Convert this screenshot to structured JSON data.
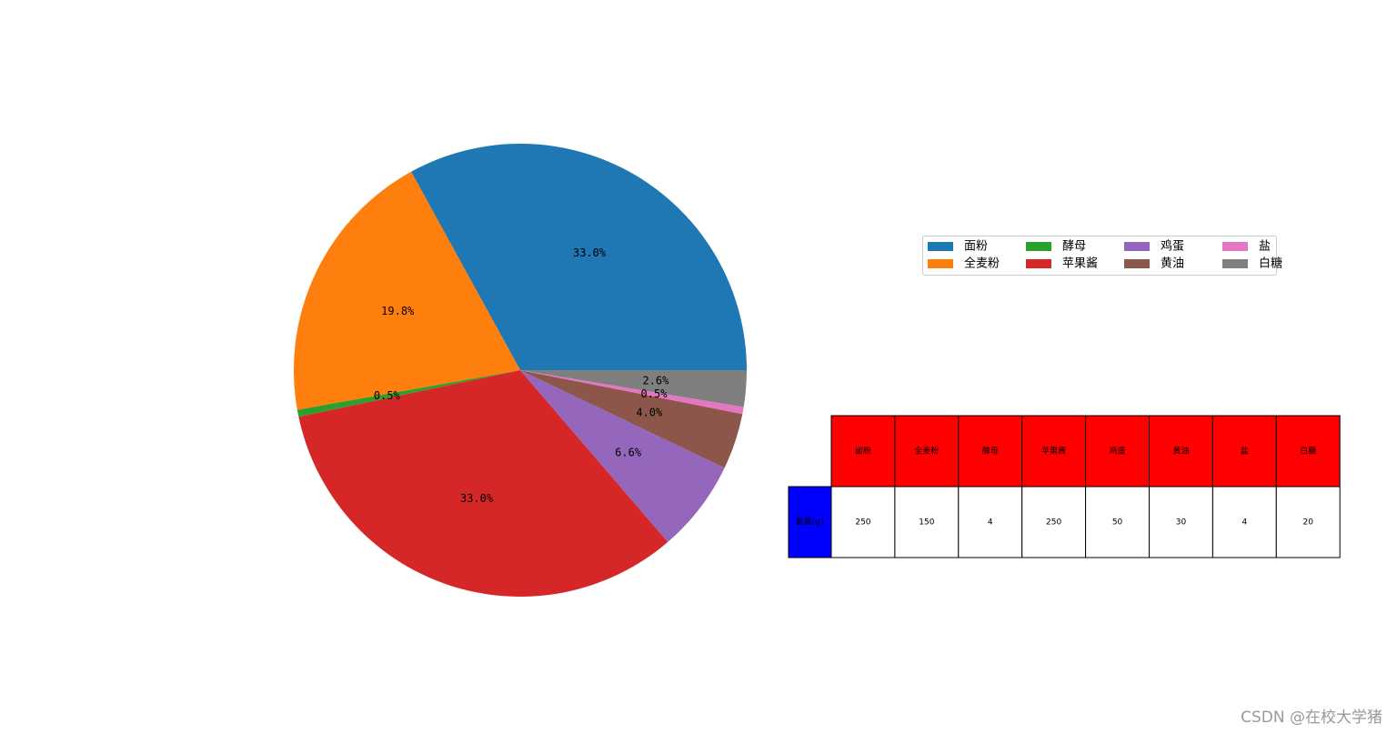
{
  "chart_data": {
    "type": "pie",
    "categories": [
      "面粉",
      "全麦粉",
      "酵母",
      "苹果酱",
      "鸡蛋",
      "黄油",
      "盐",
      "白糖"
    ],
    "values": [
      33.0,
      19.8,
      0.5,
      33.0,
      6.6,
      4.0,
      0.5,
      2.6
    ],
    "value_labels": [
      "33.0%",
      "19.8%",
      "0.5%",
      "33.0%",
      "6.6%",
      "4.0%",
      "0.5%",
      "2.6%"
    ],
    "colors": [
      "#1f77b4",
      "#ff7f0e",
      "#2ca02c",
      "#d62728",
      "#9467bd",
      "#8c564b",
      "#e377c2",
      "#7f7f7f"
    ],
    "legend": "upper right",
    "table": {
      "row_label": "重量(g)",
      "cells": [
        250,
        150,
        4,
        250,
        50,
        30,
        4,
        20
      ],
      "header_color": "#ff0000",
      "row_label_color": "#0000ff"
    }
  },
  "watermark": "CSDN @在校大学猪"
}
